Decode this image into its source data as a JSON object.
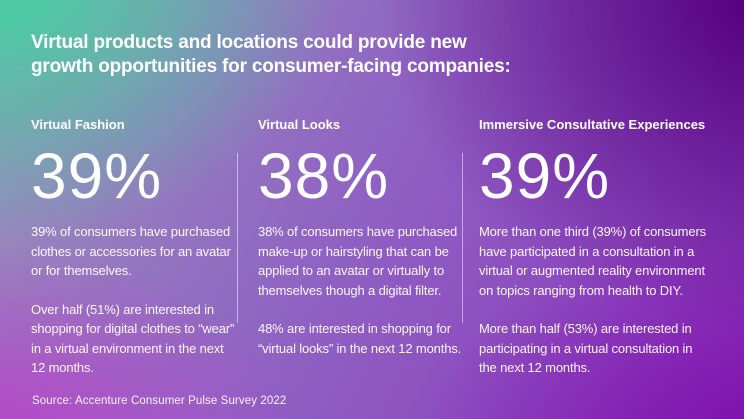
{
  "slide": {
    "title_line1": "Virtual products and locations could provide new",
    "title_line2": "growth opportunities for consumer-facing companies:",
    "footer_source": "Source: Accenture Consumer Pulse Survey 2022"
  },
  "columns": [
    {
      "heading": "Virtual Fashion",
      "stat": "39%",
      "para1": "39% of consumers have purchased clothes or accessories for an avatar or for themselves.",
      "para2": "Over half (51%) are interested in shopping for digital clothes to “wear” in a virtual environment in the next 12 months."
    },
    {
      "heading": "Virtual Looks",
      "stat": "38%",
      "para1": "38% of consumers have purchased make-up or hairstyling that can be applied to an avatar or virtually to themselves though a digital filter.",
      "para2": "48% are interested in shopping for “virtual looks” in the next 12 months."
    },
    {
      "heading": "Immersive Consultative Experiences",
      "stat": "39%",
      "para1": "More than one third (39%) of consumers have participated in a consultation in a virtual or augmented reality environment on topics ranging from health to DIY.",
      "para2": "More than half (53%) are interested in participating in a virtual consultation in the next 12 months."
    }
  ],
  "colors": {
    "teal_top_left": "#4DC9A3",
    "magenta_bottom_left": "#B440C8",
    "dark_purple_top_right": "#570381",
    "purple_bottom_right": "#7C07AB",
    "text": "#FFFFFF"
  }
}
